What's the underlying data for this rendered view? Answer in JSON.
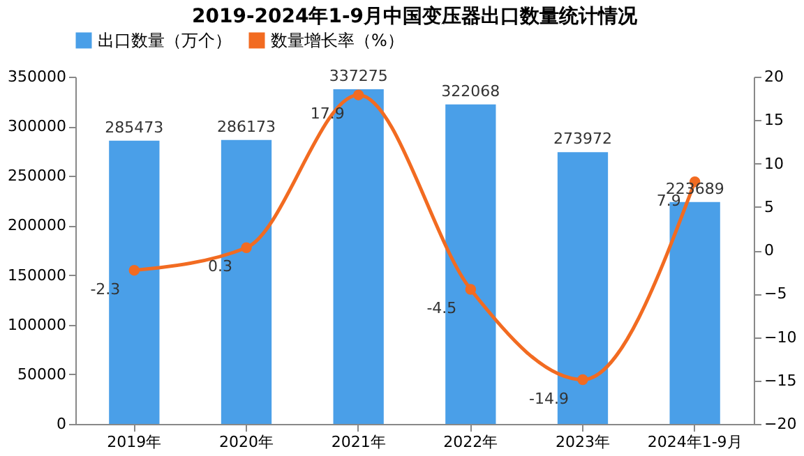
{
  "chart_data": {
    "type": "bar",
    "title": "2019-2024年1-9月中国变压器出口数量统计情况",
    "categories": [
      "2019年",
      "2020年",
      "2021年",
      "2022年",
      "2023年",
      "2024年1-9月"
    ],
    "series": [
      {
        "name": "出口数量（万个）",
        "color": "#4a9fe8",
        "values": [
          285473,
          286173,
          337275,
          322068,
          273972,
          223689
        ]
      },
      {
        "name": "数量增长率（%）",
        "color": "#f26b21",
        "type": "line",
        "axis": "y2",
        "values": [
          -2.3,
          0.3,
          17.9,
          -4.5,
          -14.9,
          7.9
        ]
      }
    ],
    "ylim": [
      0,
      350000
    ],
    "yticks": [
      0,
      50000,
      100000,
      150000,
      200000,
      250000,
      300000,
      350000
    ],
    "y2lim": [
      -20,
      20
    ],
    "y2ticks": [
      -20,
      -15,
      -10,
      -5,
      0,
      5,
      10,
      15,
      20
    ],
    "data_labels": true,
    "legend": "top",
    "grid": false,
    "marker": "circle",
    "line_style": "solid"
  }
}
